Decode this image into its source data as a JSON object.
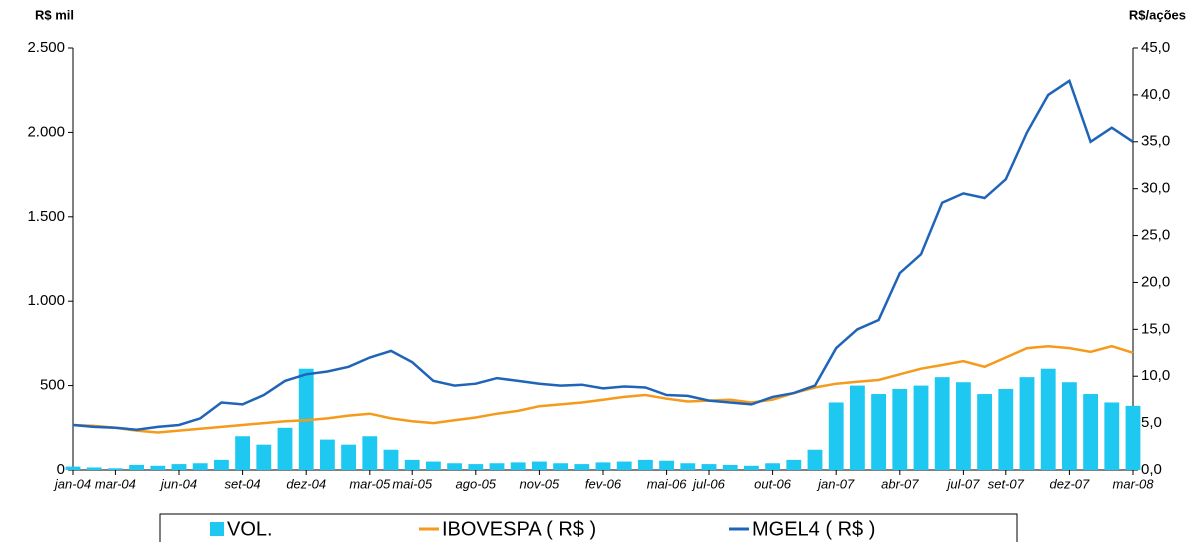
{
  "chart_data": {
    "type": "bar-line",
    "y_label": "R$ mil",
    "y2_label": "R$/ações",
    "categories": [
      "jan-04",
      null,
      "mar-04",
      null,
      null,
      "jun-04",
      null,
      null,
      "set-04",
      null,
      null,
      "dez-04",
      null,
      null,
      "mar-05",
      null,
      "mai-05",
      null,
      null,
      "ago-05",
      null,
      null,
      "nov-05",
      null,
      null,
      "fev-06",
      null,
      null,
      "mai-06",
      null,
      "jul-06",
      null,
      null,
      "out-06",
      null,
      null,
      "jan-07",
      null,
      null,
      "abr-07",
      null,
      null,
      "jul-07",
      null,
      "set-07",
      null,
      null,
      "dez-07",
      null,
      null,
      "mar-08"
    ],
    "series": [
      {
        "name": "VOL.",
        "kind": "bar",
        "color": "#1ec8f0",
        "values": [
          20,
          15,
          10,
          30,
          25,
          35,
          40,
          60,
          200,
          150,
          250,
          600,
          180,
          150,
          200,
          120,
          60,
          50,
          40,
          35,
          40,
          45,
          50,
          40,
          35,
          45,
          50,
          60,
          55,
          40,
          35,
          30,
          25,
          40,
          60,
          120,
          400,
          500,
          450,
          480,
          500,
          550,
          520,
          450,
          480,
          550,
          600,
          520,
          450,
          400,
          380
        ]
      },
      {
        "name": "IBOVESPA ( R$ )",
        "kind": "line",
        "axis": "y2",
        "color": "#f59a1a",
        "values": [
          4.8,
          4.7,
          4.5,
          4.2,
          4.0,
          4.2,
          4.4,
          4.6,
          4.8,
          5.0,
          5.2,
          5.3,
          5.5,
          5.8,
          6.0,
          5.5,
          5.2,
          5.0,
          5.3,
          5.6,
          6.0,
          6.3,
          6.8,
          7.0,
          7.2,
          7.5,
          7.8,
          8.0,
          7.6,
          7.3,
          7.4,
          7.5,
          7.2,
          7.5,
          8.2,
          8.8,
          9.2,
          9.4,
          9.6,
          10.2,
          10.8,
          11.2,
          11.6,
          11.0,
          12.0,
          13.0,
          13.2,
          13.0,
          12.6,
          13.2,
          12.5
        ]
      },
      {
        "name": "MGEL4 ( R$ )",
        "kind": "line",
        "axis": "y2",
        "color": "#1f64b8",
        "values": [
          4.8,
          4.6,
          4.5,
          4.3,
          4.6,
          4.8,
          5.5,
          7.2,
          7.0,
          8.0,
          9.5,
          10.2,
          10.5,
          11.0,
          12.0,
          12.7,
          11.5,
          9.5,
          9.0,
          9.2,
          9.8,
          9.5,
          9.2,
          9.0,
          9.1,
          8.7,
          8.9,
          8.8,
          8.0,
          7.9,
          7.4,
          7.2,
          7.0,
          7.8,
          8.2,
          9.0,
          13.0,
          15.0,
          16.0,
          21.0,
          23.0,
          28.5,
          29.5,
          29.0,
          31.0,
          36.0,
          40.0,
          41.5,
          35.0,
          36.5,
          35.0
        ]
      }
    ],
    "ylim": [
      0,
      2500
    ],
    "yticks": [
      0,
      500,
      {
        "value": 1000,
        "label": "1.000"
      },
      {
        "value": 1500,
        "label": "1.500"
      },
      {
        "value": 2000,
        "label": "2.000"
      },
      {
        "value": 2500,
        "label": "2.500"
      }
    ],
    "y2lim": [
      0,
      45
    ],
    "y2ticks": [
      {
        "value": 0,
        "label": "0,0"
      },
      {
        "value": 5,
        "label": "5,0"
      },
      {
        "value": 10,
        "label": "10,0"
      },
      {
        "value": 15,
        "label": "15,0"
      },
      {
        "value": 20,
        "label": "20,0"
      },
      {
        "value": 25,
        "label": "25,0"
      },
      {
        "value": 30,
        "label": "30,0"
      },
      {
        "value": 35,
        "label": "35,0"
      },
      {
        "value": 40,
        "label": "40,0"
      },
      {
        "value": 45,
        "label": "45,0"
      }
    ],
    "legend": "bottom"
  }
}
